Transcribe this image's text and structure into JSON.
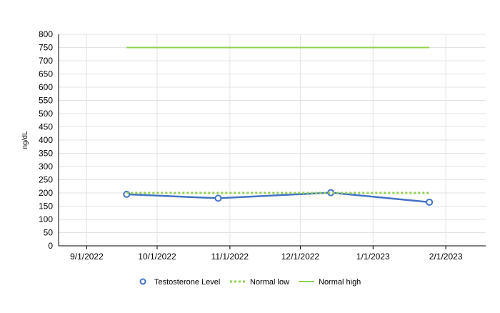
{
  "chart_data": {
    "type": "line",
    "title": "",
    "xlabel": "",
    "ylabel": "ng/dL",
    "x_tick_labels": [
      "9/1/2022",
      "10/1/2022",
      "11/1/2022",
      "12/1/2022",
      "1/1/2023",
      "2/1/2023"
    ],
    "x_range": [
      "2022-08-20",
      "2023-02-18"
    ],
    "ylim": [
      0,
      800
    ],
    "y_ticks": [
      0,
      50,
      100,
      150,
      200,
      250,
      300,
      350,
      400,
      450,
      500,
      550,
      600,
      650,
      700,
      750,
      800
    ],
    "grid": true,
    "legend_position": "bottom",
    "series": [
      {
        "name": "Testosterone Level",
        "style": "line-markers",
        "color": "#4472C4",
        "x": [
          "2022-09-18",
          "2022-10-27",
          "2022-12-14",
          "2023-01-25"
        ],
        "y": [
          195,
          180,
          201,
          165
        ]
      },
      {
        "name": "Normal low",
        "style": "dotted",
        "color": "#92D050",
        "x": [
          "2022-09-18",
          "2023-01-25"
        ],
        "y": [
          200,
          200
        ]
      },
      {
        "name": "Normal high",
        "style": "solid",
        "color": "#92D050",
        "x": [
          "2022-09-18",
          "2023-01-25"
        ],
        "y": [
          750,
          750
        ]
      }
    ]
  }
}
